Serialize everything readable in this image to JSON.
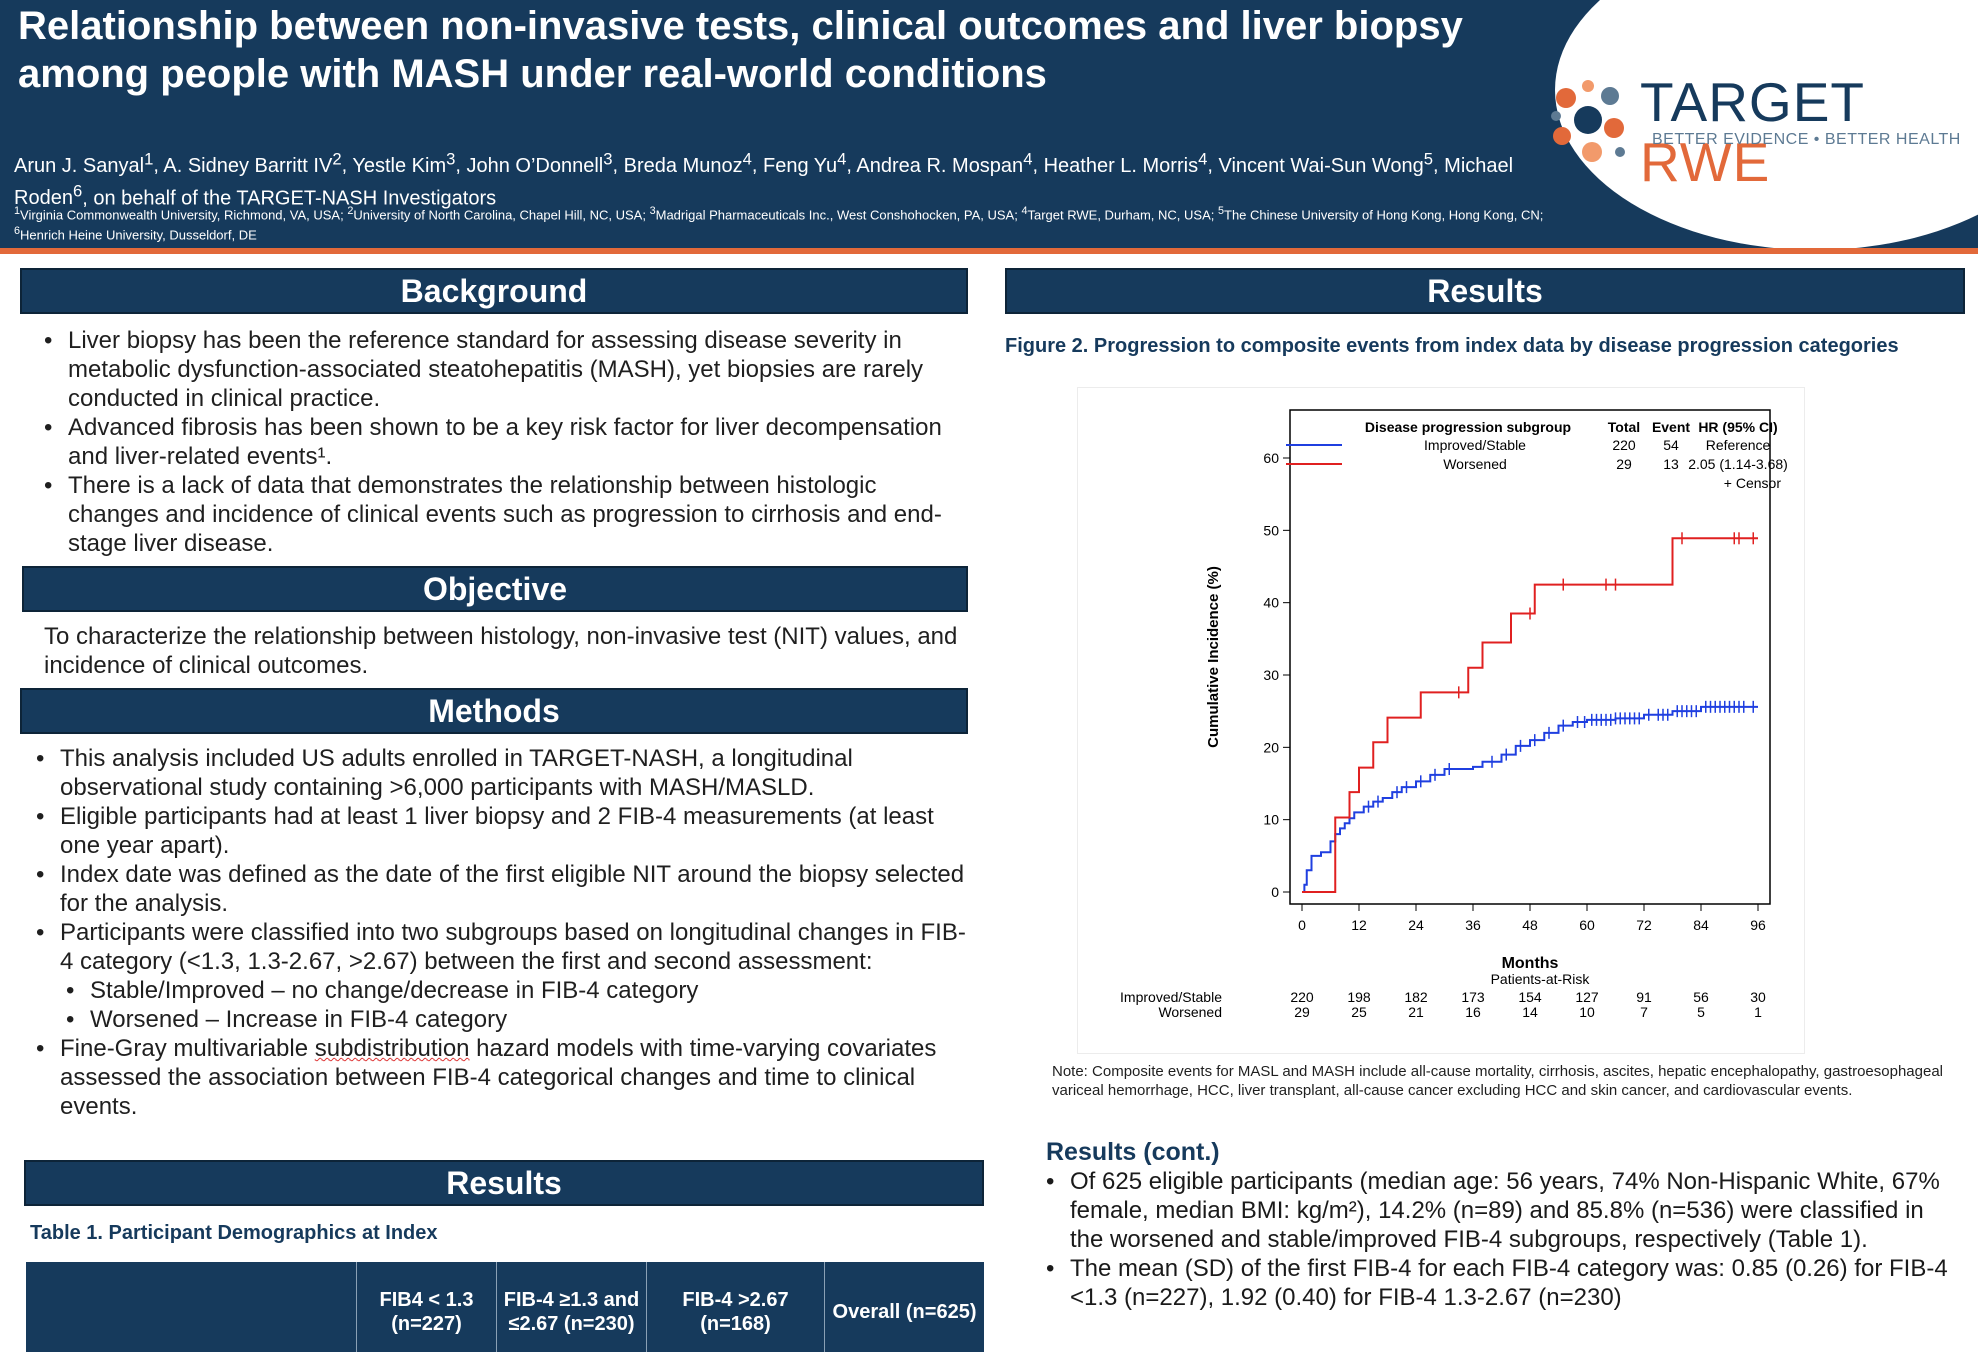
{
  "header": {
    "title": "Relationship between non-invasive tests, clinical outcomes and liver biopsy among people with MASH under real-world conditions",
    "authors": [
      {
        "name": "Arun J. Sanyal",
        "sup": "1"
      },
      {
        "name": "A. Sidney Barritt IV",
        "sup": "2"
      },
      {
        "name": "Yestle Kim",
        "sup": "3"
      },
      {
        "name": "John O’Donnell",
        "sup": "3"
      },
      {
        "name": "Breda Munoz",
        "sup": "4"
      },
      {
        "name": "Feng Yu",
        "sup": "4"
      },
      {
        "name": "Andrea R. Mospan",
        "sup": "4"
      },
      {
        "name": "Heather L. Morris",
        "sup": "4"
      },
      {
        "name": "Vincent Wai-Sun Wong",
        "sup": "5"
      },
      {
        "name": "Michael Roden",
        "sup": "6"
      }
    ],
    "authors_suffix": "on behalf of the TARGET-NASH Investigators",
    "affiliations": [
      {
        "sup": "1",
        "text": "Virginia Commonwealth University, Richmond, VA, USA;"
      },
      {
        "sup": "2",
        "text": "University of North Carolina, Chapel Hill, NC, USA;"
      },
      {
        "sup": "3",
        "text": "Madrigal Pharmaceuticals Inc., West Conshohocken, PA, USA;"
      },
      {
        "sup": "4",
        "text": "Target RWE, Durham, NC, USA;"
      },
      {
        "sup": "5",
        "text": "The Chinese University of Hong Kong, Hong Kong, CN;"
      },
      {
        "sup": "6",
        "text": "Henrich Heine University, Dusseldorf, DE"
      }
    ],
    "logo_word1": "TARGET ",
    "logo_word2": "RWE",
    "logo_tagline": "BETTER EVIDENCE • BETTER HEALTH"
  },
  "background": {
    "heading": "Background",
    "items": [
      "Liver biopsy has been the reference standard for assessing disease severity in metabolic dysfunction-associated steatohepatitis (MASH), yet biopsies are rarely conducted in clinical practice.",
      "Advanced fibrosis has been shown to be a key risk factor for liver decompensation and liver-related events¹.",
      "There is a lack of data that demonstrates the relationship between histologic changes and incidence of clinical events such as progression to cirrhosis and end-stage liver disease."
    ]
  },
  "objective": {
    "heading": "Objective",
    "text": "To characterize the relationship between histology, non-invasive test (NIT) values, and incidence of clinical outcomes."
  },
  "methods": {
    "heading": "Methods",
    "items": [
      "This analysis included US adults enrolled in TARGET-NASH, a longitudinal observational study containing >6,000 participants with MASH/MASLD.",
      "Eligible participants had at least 1 liver biopsy and 2 FIB-4 measurements (at least one year apart).",
      "Index date was defined as the date of the first eligible NIT around the biopsy selected for the analysis.",
      "Participants were classified into two subgroups based on longitudinal changes in FIB-4 category (<1.3, 1.3-2.67, >2.67) between the first and second assessment:"
    ],
    "subitems": [
      "Stable/Improved – no change/decrease in FIB-4 category",
      "Worsened – Increase in FIB-4 category"
    ],
    "last_item_pre": "Fine-Gray multivariable ",
    "last_item_word": "subdistribution",
    "last_item_post": " hazard models with time-varying covariates assessed the association between FIB-4 categorical changes and time to clinical events."
  },
  "results_left": {
    "heading": "Results",
    "table_caption": "Table 1. Participant Demographics at Index",
    "table_headers": [
      "",
      "FIB4 < 1.3 (n=227)",
      "FIB-4 ≥1.3 and ≤2.67 (n=230)",
      "FIB-4 >2.67 (n=168)",
      "Overall (n=625)"
    ]
  },
  "results_right": {
    "heading": "Results",
    "figure_caption": "Figure 2. Progression to composite events from index data by disease progression categories",
    "note": "Note: Composite events for MASL and MASH include all-cause mortality, cirrhosis, ascites, hepatic encephalopathy, gastroesophageal variceal hemorrhage, HCC, liver transplant, all-cause cancer excluding HCC and skin cancer, and cardiovascular events.",
    "cont_title": "Results (cont.)",
    "cont_items": [
      "Of 625 eligible participants (median age: 56 years, 74% Non-Hispanic White, 67% female, median BMI: kg/m²), 14.2% (n=89) and 85.8% (n=536) were classified in the worsened and stable/improved FIB-4 subgroups, respectively (Table 1).",
      "The mean (SD) of the first FIB-4 for each FIB-4 category was: 0.85 (0.26) for FIB-4 <1.3 (n=227), 1.92 (0.40) for FIB-4 1.3-2.67 (n=230)"
    ]
  },
  "chart_data": {
    "type": "line",
    "xlabel": "Months",
    "ylabel": "Cumulative Incidence (%)",
    "xlim": [
      0,
      96
    ],
    "ylim": [
      0,
      60
    ],
    "xticks": [
      0,
      12,
      24,
      36,
      48,
      60,
      72,
      84,
      96
    ],
    "yticks": [
      0,
      10,
      20,
      30,
      40,
      50,
      60
    ],
    "legend": {
      "placement": "top",
      "title": "Disease progression subgroup",
      "col_total": "Total",
      "col_event": "Event",
      "col_hr": "HR (95% CI)",
      "censor_label": "+ Censor"
    },
    "series": [
      {
        "name": "Improved/Stable",
        "color": "#1f3fe0",
        "total": "220",
        "event": "54",
        "hr": "Reference",
        "steps": [
          [
            0,
            0
          ],
          [
            0.5,
            1
          ],
          [
            1,
            3
          ],
          [
            2,
            5
          ],
          [
            4,
            5.5
          ],
          [
            6,
            7
          ],
          [
            7,
            8
          ],
          [
            8,
            8.8
          ],
          [
            9,
            9.5
          ],
          [
            10,
            10.2
          ],
          [
            11,
            11
          ],
          [
            13,
            11.8
          ],
          [
            15,
            12.5
          ],
          [
            17,
            13
          ],
          [
            19,
            13.8
          ],
          [
            21,
            14.5
          ],
          [
            24,
            15.3
          ],
          [
            27,
            16.2
          ],
          [
            30,
            17
          ],
          [
            36,
            17.3
          ],
          [
            38,
            18
          ],
          [
            42,
            19
          ],
          [
            45,
            20.2
          ],
          [
            48,
            21
          ],
          [
            51,
            22
          ],
          [
            54,
            23
          ],
          [
            57,
            23.5
          ],
          [
            60,
            23.8
          ],
          [
            66,
            24
          ],
          [
            72,
            24.5
          ],
          [
            78,
            25
          ],
          [
            84,
            25.6
          ],
          [
            96,
            25.6
          ]
        ],
        "censors": [
          10,
          14,
          16,
          20,
          22,
          25,
          28,
          31,
          40,
          43,
          46,
          49,
          52,
          55,
          58,
          59.5,
          61,
          62,
          63,
          64,
          65,
          66,
          67,
          68,
          69,
          70,
          71,
          73,
          75,
          76,
          77,
          79,
          80,
          81,
          82,
          83,
          85,
          86,
          87,
          88,
          89,
          90,
          91,
          92,
          93,
          95
        ]
      },
      {
        "name": "Worsened",
        "color": "#e02020",
        "total": "29",
        "event": "13",
        "hr": "2.05 (1.14-3.68)",
        "steps": [
          [
            0,
            0
          ],
          [
            7,
            0
          ],
          [
            7,
            10.3
          ],
          [
            10,
            10.3
          ],
          [
            10,
            13.8
          ],
          [
            12,
            13.8
          ],
          [
            12,
            17.2
          ],
          [
            15,
            17.2
          ],
          [
            15,
            20.7
          ],
          [
            18,
            20.7
          ],
          [
            18,
            24.1
          ],
          [
            25,
            24.1
          ],
          [
            25,
            27.6
          ],
          [
            35,
            27.6
          ],
          [
            35,
            31
          ],
          [
            38,
            31
          ],
          [
            38,
            34.5
          ],
          [
            44,
            34.5
          ],
          [
            44,
            38.5
          ],
          [
            49,
            38.5
          ],
          [
            49,
            42.5
          ],
          [
            78,
            42.5
          ],
          [
            78,
            48.9
          ],
          [
            96,
            48.9
          ]
        ],
        "censors": [
          33,
          48,
          55,
          64,
          66,
          80,
          91,
          92,
          95
        ]
      }
    ],
    "at_risk": {
      "title": "Patients-at-Risk",
      "rows": [
        {
          "label": "Improved/Stable",
          "values": [
            "220",
            "198",
            "182",
            "173",
            "154",
            "127",
            "91",
            "56",
            "30"
          ]
        },
        {
          "label": "Worsened",
          "values": [
            "29",
            "25",
            "21",
            "16",
            "14",
            "10",
            "7",
            "5",
            "1"
          ]
        }
      ]
    }
  }
}
